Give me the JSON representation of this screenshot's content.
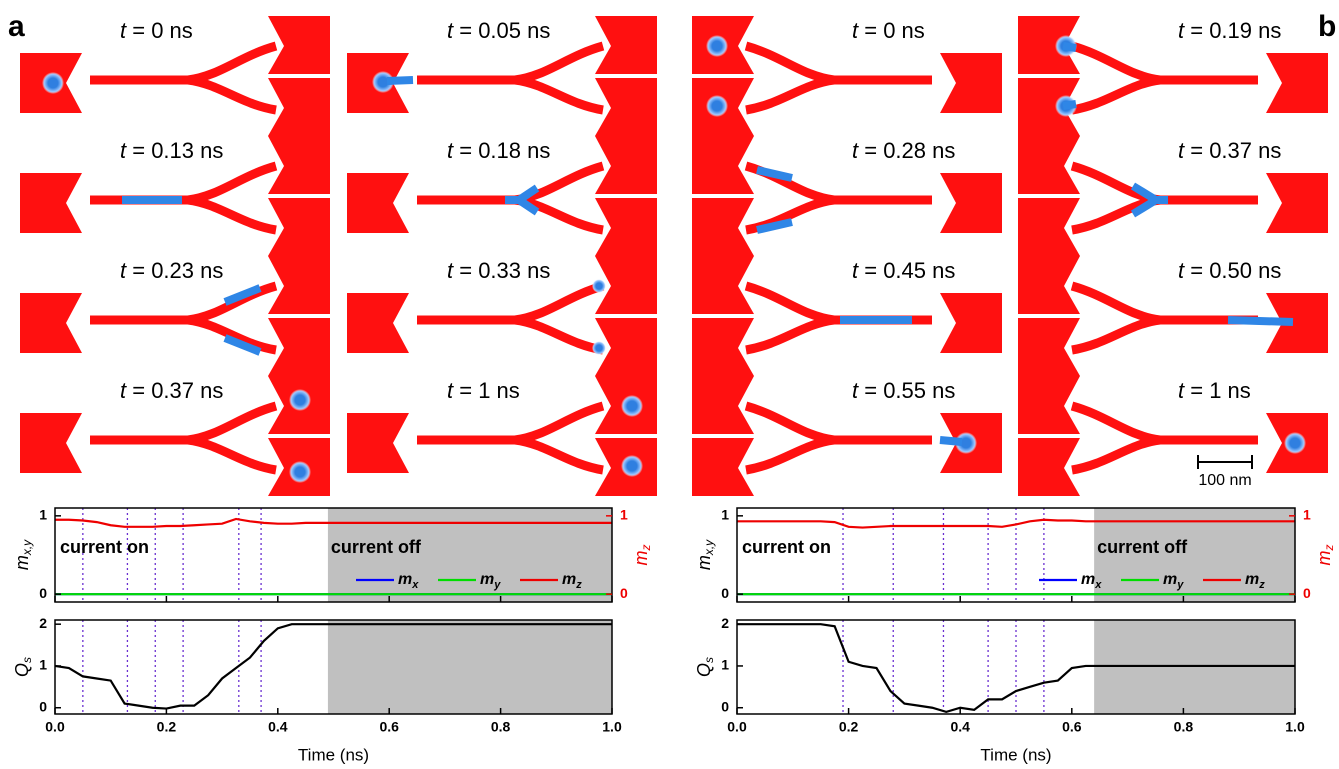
{
  "panels": [
    {
      "label": "a",
      "snapshots": [
        {
          "symbol": "t",
          "text": " = 0 ns"
        },
        {
          "symbol": "t",
          "text": " = 0.05 ns"
        },
        {
          "symbol": "t",
          "text": " = 0.13 ns"
        },
        {
          "symbol": "t",
          "text": " = 0.18 ns"
        },
        {
          "symbol": "t",
          "text": " = 0.23 ns"
        },
        {
          "symbol": "t",
          "text": " = 0.33 ns"
        },
        {
          "symbol": "t",
          "text": " = 0.37 ns"
        },
        {
          "symbol": "t",
          "text": " = 1 ns"
        }
      ]
    },
    {
      "label": "b",
      "snapshots": [
        {
          "symbol": "t",
          "text": " = 0 ns"
        },
        {
          "symbol": "t",
          "text": " = 0.19 ns"
        },
        {
          "symbol": "t",
          "text": " = 0.28 ns"
        },
        {
          "symbol": "t",
          "text": " = 0.37 ns"
        },
        {
          "symbol": "t",
          "text": " = 0.45 ns"
        },
        {
          "symbol": "t",
          "text": " = 0.50 ns"
        },
        {
          "symbol": "t",
          "text": " = 0.55 ns"
        },
        {
          "symbol": "t",
          "text": " = 1 ns"
        }
      ],
      "scale_bar": "100 nm"
    }
  ],
  "chart_data": [
    {
      "type": "line",
      "annotations": [
        "current on",
        "current off"
      ],
      "ylabel": {
        "symbol": "m",
        "sub": "x,y"
      },
      "y2label": {
        "symbol": "m",
        "sub": "z"
      },
      "x": [
        0,
        0.025,
        0.05,
        0.075,
        0.1,
        0.125,
        0.15,
        0.175,
        0.2,
        0.225,
        0.25,
        0.275,
        0.3,
        0.325,
        0.35,
        0.375,
        0.4,
        0.425,
        0.45,
        0.475,
        0.5,
        0.525,
        0.55,
        0.575,
        0.6,
        0.625,
        0.65,
        0.675,
        0.7,
        0.725,
        0.75,
        0.775,
        0.8,
        0.825,
        0.85,
        0.875,
        0.9,
        0.925,
        0.95,
        0.975,
        1
      ],
      "series": [
        {
          "name": "m",
          "subscript": "x",
          "color": "#0000ff",
          "values": [
            0,
            0,
            0,
            0,
            0,
            0,
            0,
            0,
            0,
            0,
            0,
            0,
            0,
            0,
            0,
            0,
            0,
            0,
            0,
            0,
            0,
            0,
            0,
            0,
            0,
            0,
            0,
            0,
            0,
            0,
            0,
            0,
            0,
            0,
            0,
            0,
            0,
            0,
            0,
            0,
            0
          ]
        },
        {
          "name": "m",
          "subscript": "y",
          "color": "#00dd00",
          "values": [
            0,
            0,
            0,
            0,
            0,
            0,
            0,
            0,
            0,
            0,
            0,
            0,
            0,
            0,
            0,
            0,
            0,
            0,
            0,
            0,
            0,
            0,
            0,
            0,
            0,
            0,
            0,
            0,
            0,
            0,
            0,
            0,
            0,
            0,
            0,
            0,
            0,
            0,
            0,
            0,
            0
          ]
        },
        {
          "name": "m",
          "subscript": "z",
          "color": "#ee0000",
          "axis": "y2",
          "values": [
            0.95,
            0.95,
            0.94,
            0.92,
            0.88,
            0.86,
            0.86,
            0.86,
            0.87,
            0.87,
            0.88,
            0.89,
            0.9,
            0.96,
            0.93,
            0.91,
            0.9,
            0.9,
            0.91,
            0.91,
            0.91,
            0.91,
            0.91,
            0.91,
            0.91,
            0.91,
            0.91,
            0.91,
            0.91,
            0.91,
            0.91,
            0.91,
            0.91,
            0.91,
            0.91,
            0.91,
            0.91,
            0.91,
            0.91,
            0.91,
            0.91
          ]
        }
      ],
      "xlim": [
        0,
        1
      ],
      "ylim": [
        -0.1,
        1.1
      ],
      "yticks": [
        0,
        1
      ],
      "y2lim": [
        -0.1,
        1.1
      ],
      "y2ticks": [
        0,
        1
      ],
      "xticks": [
        {
          "value": 0,
          "label": "0.0"
        },
        {
          "value": 0.2,
          "label": "0.2"
        },
        {
          "value": 0.4,
          "label": "0.4"
        },
        {
          "value": 0.6,
          "label": "0.6"
        },
        {
          "value": 0.8,
          "label": "0.8"
        },
        {
          "value": 1,
          "label": "1.0"
        }
      ],
      "shade": [
        0.49,
        1
      ],
      "markers": [
        0.05,
        0.13,
        0.18,
        0.23,
        0.33,
        0.37
      ],
      "legend": "lower right"
    },
    {
      "type": "line",
      "ylabel": {
        "symbol": "Q",
        "sub": "s"
      },
      "xlabel": "Time (ns)",
      "x": [
        0,
        0.025,
        0.05,
        0.075,
        0.1,
        0.125,
        0.15,
        0.175,
        0.2,
        0.225,
        0.25,
        0.275,
        0.3,
        0.325,
        0.35,
        0.375,
        0.4,
        0.425,
        0.45,
        0.475,
        0.5,
        0.525,
        0.55,
        0.575,
        0.6,
        0.625,
        0.65,
        0.675,
        0.7,
        0.725,
        0.75,
        0.775,
        0.8,
        0.825,
        0.85,
        0.875,
        0.9,
        0.925,
        0.95,
        0.975,
        1
      ],
      "series": [
        {
          "color": "#000000",
          "values": [
            1.0,
            0.95,
            0.75,
            0.7,
            0.65,
            0.1,
            0.05,
            0.0,
            -0.02,
            0.05,
            0.05,
            0.3,
            0.7,
            0.95,
            1.2,
            1.6,
            1.9,
            2.0,
            2.0,
            2.0,
            2.0,
            2.0,
            2.0,
            2.0,
            2.0,
            2.0,
            2.0,
            2.0,
            2.0,
            2.0,
            2.0,
            2.0,
            2.0,
            2.0,
            2.0,
            2.0,
            2.0,
            2.0,
            2.0,
            2.0,
            2.0
          ]
        }
      ],
      "xlim": [
        0,
        1
      ],
      "ylim": [
        -0.15,
        2.1
      ],
      "yticks": [
        0,
        1,
        2
      ],
      "xticks": [
        {
          "value": 0,
          "label": "0.0"
        },
        {
          "value": 0.2,
          "label": "0.2"
        },
        {
          "value": 0.4,
          "label": "0.4"
        },
        {
          "value": 0.6,
          "label": "0.6"
        },
        {
          "value": 0.8,
          "label": "0.8"
        },
        {
          "value": 1,
          "label": "1.0"
        }
      ],
      "shade": [
        0.49,
        1
      ],
      "markers": [
        0.05,
        0.13,
        0.18,
        0.23,
        0.33,
        0.37
      ]
    },
    {
      "type": "line",
      "annotations": [
        "current on",
        "current off"
      ],
      "ylabel": {
        "symbol": "m",
        "sub": "x,y"
      },
      "y2label": {
        "symbol": "m",
        "sub": "z"
      },
      "x": [
        0,
        0.025,
        0.05,
        0.075,
        0.1,
        0.125,
        0.15,
        0.175,
        0.2,
        0.225,
        0.25,
        0.275,
        0.3,
        0.325,
        0.35,
        0.375,
        0.4,
        0.425,
        0.45,
        0.475,
        0.5,
        0.525,
        0.55,
        0.575,
        0.6,
        0.625,
        0.65,
        0.675,
        0.7,
        0.725,
        0.75,
        0.775,
        0.8,
        0.825,
        0.85,
        0.875,
        0.9,
        0.925,
        0.95,
        0.975,
        1
      ],
      "series": [
        {
          "name": "m",
          "subscript": "x",
          "color": "#0000ff",
          "values": [
            0,
            0,
            0,
            0,
            0,
            0,
            0,
            0,
            0,
            0,
            0,
            0,
            0,
            0,
            0,
            0,
            0,
            0,
            0,
            0,
            0,
            0,
            0,
            0,
            0,
            0,
            0,
            0,
            0,
            0,
            0,
            0,
            0,
            0,
            0,
            0,
            0,
            0,
            0,
            0,
            0
          ]
        },
        {
          "name": "m",
          "subscript": "y",
          "color": "#00dd00",
          "values": [
            0,
            0,
            0,
            0,
            0,
            0,
            0,
            0,
            0,
            0,
            0,
            0,
            0,
            0,
            0,
            0,
            0,
            0,
            0,
            0,
            0,
            0,
            0,
            0,
            0,
            0,
            0,
            0,
            0,
            0,
            0,
            0,
            0,
            0,
            0,
            0,
            0,
            0,
            0,
            0,
            0
          ]
        },
        {
          "name": "m",
          "subscript": "z",
          "color": "#ee0000",
          "axis": "y2",
          "values": [
            0.93,
            0.93,
            0.93,
            0.93,
            0.93,
            0.93,
            0.93,
            0.92,
            0.86,
            0.85,
            0.86,
            0.87,
            0.87,
            0.87,
            0.87,
            0.87,
            0.87,
            0.87,
            0.87,
            0.86,
            0.89,
            0.93,
            0.95,
            0.94,
            0.94,
            0.93,
            0.93,
            0.93,
            0.93,
            0.93,
            0.93,
            0.93,
            0.93,
            0.93,
            0.93,
            0.93,
            0.93,
            0.93,
            0.93,
            0.93,
            0.93
          ]
        }
      ],
      "xlim": [
        0,
        1
      ],
      "ylim": [
        -0.1,
        1.1
      ],
      "yticks": [
        0,
        1
      ],
      "y2lim": [
        -0.1,
        1.1
      ],
      "y2ticks": [
        0,
        1
      ],
      "xticks": [
        {
          "value": 0,
          "label": "0.0"
        },
        {
          "value": 0.2,
          "label": "0.2"
        },
        {
          "value": 0.4,
          "label": "0.4"
        },
        {
          "value": 0.6,
          "label": "0.6"
        },
        {
          "value": 0.8,
          "label": "0.8"
        },
        {
          "value": 1,
          "label": "1.0"
        }
      ],
      "shade": [
        0.64,
        1
      ],
      "markers": [
        0.19,
        0.28,
        0.37,
        0.45,
        0.5,
        0.55
      ],
      "legend": "lower right"
    },
    {
      "type": "line",
      "ylabel": {
        "symbol": "Q",
        "sub": "s"
      },
      "xlabel": "Time (ns)",
      "x": [
        0,
        0.025,
        0.05,
        0.075,
        0.1,
        0.125,
        0.15,
        0.175,
        0.2,
        0.225,
        0.25,
        0.275,
        0.3,
        0.325,
        0.35,
        0.375,
        0.4,
        0.425,
        0.45,
        0.475,
        0.5,
        0.525,
        0.55,
        0.575,
        0.6,
        0.625,
        0.65,
        0.675,
        0.7,
        0.725,
        0.75,
        0.775,
        0.8,
        0.825,
        0.85,
        0.875,
        0.9,
        0.925,
        0.95,
        0.975,
        1
      ],
      "series": [
        {
          "color": "#000000",
          "values": [
            2.0,
            2.0,
            2.0,
            2.0,
            2.0,
            2.0,
            2.0,
            1.95,
            1.1,
            1.0,
            0.95,
            0.4,
            0.1,
            0.05,
            0.0,
            -0.1,
            0.0,
            -0.05,
            0.2,
            0.2,
            0.4,
            0.5,
            0.6,
            0.65,
            0.95,
            1.0,
            1.0,
            1.0,
            1.0,
            1.0,
            1.0,
            1.0,
            1.0,
            1.0,
            1.0,
            1.0,
            1.0,
            1.0,
            1.0,
            1.0,
            1.0
          ]
        }
      ],
      "xlim": [
        0,
        1
      ],
      "ylim": [
        -0.15,
        2.1
      ],
      "yticks": [
        0,
        1,
        2
      ],
      "xticks": [
        {
          "value": 0,
          "label": "0.0"
        },
        {
          "value": 0.2,
          "label": "0.2"
        },
        {
          "value": 0.4,
          "label": "0.4"
        },
        {
          "value": 0.6,
          "label": "0.6"
        },
        {
          "value": 0.8,
          "label": "0.8"
        },
        {
          "value": 1,
          "label": "1.0"
        }
      ],
      "shade": [
        0.64,
        1
      ],
      "markers": [
        0.19,
        0.28,
        0.37,
        0.45,
        0.5,
        0.55
      ]
    }
  ]
}
